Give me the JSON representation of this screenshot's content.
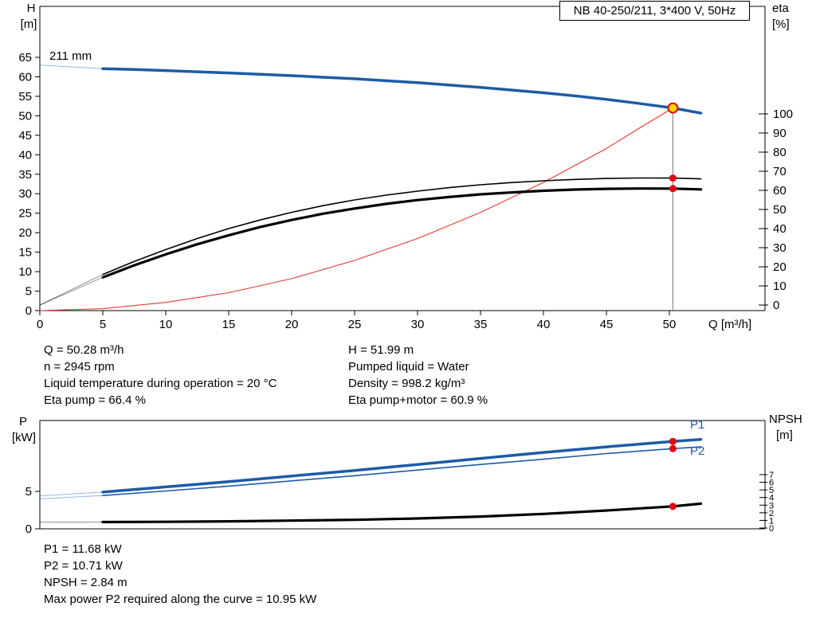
{
  "chart_data": [
    {
      "id": "qh-eta",
      "type": "line",
      "title": "NB 40-250/211, 3*400 V, 50Hz",
      "x_axis": {
        "label": "Q [m³/h]",
        "min": 0,
        "max": 57.6,
        "ticks": [
          0,
          5,
          10,
          15,
          20,
          25,
          30,
          35,
          40,
          45,
          50
        ]
      },
      "y_left": {
        "name": "H",
        "unit": "[m]",
        "min": 0,
        "max": 78,
        "ticks": [
          0,
          5,
          10,
          15,
          20,
          25,
          30,
          35,
          40,
          45,
          50,
          55,
          60,
          65
        ]
      },
      "y_right": {
        "name": "eta",
        "unit": "[%]",
        "min": 0,
        "max": 100,
        "ticks": [
          0,
          10,
          20,
          30,
          40,
          50,
          60,
          70,
          80,
          90,
          100
        ]
      },
      "duty_point": {
        "q": 50.28,
        "h": 51.99,
        "fill": "#ffd400",
        "ring": "#e30613"
      },
      "duty_color": "#e30613",
      "legend_position": "none",
      "grid": false,
      "series": [
        {
          "name": "system-curve",
          "axis": "left",
          "color": "#e5372e",
          "width": 1.1,
          "points": [
            [
              0,
              0
            ],
            [
              5,
              0.5
            ],
            [
              10,
              2.1
            ],
            [
              15,
              4.6
            ],
            [
              20,
              8.2
            ],
            [
              25,
              12.9
            ],
            [
              30,
              18.5
            ],
            [
              35,
              25.2
            ],
            [
              40,
              32.9
            ],
            [
              45,
              41.6
            ],
            [
              47.5,
              46.6
            ],
            [
              50.28,
              51.99
            ]
          ]
        },
        {
          "name": "eta-pump",
          "axis": "right",
          "color": "#000000",
          "width": 1.6,
          "duty_value": 66.4,
          "lead": [
            [
              0,
              0
            ],
            [
              5,
              16
            ]
          ],
          "points": [
            [
              5,
              16
            ],
            [
              7.5,
              22.8
            ],
            [
              10,
              29
            ],
            [
              12.5,
              34.8
            ],
            [
              15,
              40
            ],
            [
              17.5,
              44.5
            ],
            [
              20,
              48.5
            ],
            [
              22.5,
              52
            ],
            [
              25,
              55
            ],
            [
              27.5,
              57.5
            ],
            [
              30,
              59.6
            ],
            [
              32.5,
              61.4
            ],
            [
              35,
              62.9
            ],
            [
              37.5,
              64.1
            ],
            [
              40,
              65
            ],
            [
              42.5,
              65.7
            ],
            [
              45,
              66.2
            ],
            [
              47.5,
              66.45
            ],
            [
              50.28,
              66.4
            ],
            [
              52.5,
              66
            ]
          ]
        },
        {
          "name": "eta-pump-motor",
          "axis": "right",
          "color": "#000000",
          "width": 3.2,
          "duty_value": 60.9,
          "lead": [
            [
              0,
              0
            ],
            [
              5,
              14.5
            ]
          ],
          "points": [
            [
              5,
              14.5
            ],
            [
              7.5,
              20.8
            ],
            [
              10,
              26.5
            ],
            [
              12.5,
              31.8
            ],
            [
              15,
              36.5
            ],
            [
              17.5,
              40.8
            ],
            [
              20,
              44.5
            ],
            [
              22.5,
              47.8
            ],
            [
              25,
              50.5
            ],
            [
              27.5,
              52.9
            ],
            [
              30,
              54.9
            ],
            [
              32.5,
              56.5
            ],
            [
              35,
              57.9
            ],
            [
              37.5,
              58.9
            ],
            [
              40,
              59.8
            ],
            [
              42.5,
              60.4
            ],
            [
              45,
              60.8
            ],
            [
              47.5,
              60.95
            ],
            [
              50.28,
              60.9
            ],
            [
              52.5,
              60.5
            ]
          ]
        },
        {
          "name": "head-211mm",
          "axis": "left",
          "color": "#1d5ba6",
          "width": 3.5,
          "label": "211 mm",
          "lead": [
            [
              0,
              63
            ],
            [
              5,
              62.1
            ]
          ],
          "points": [
            [
              5,
              62.1
            ],
            [
              7.5,
              61.9
            ],
            [
              10,
              61.6
            ],
            [
              12.5,
              61.3
            ],
            [
              15,
              61
            ],
            [
              17.5,
              60.65
            ],
            [
              20,
              60.3
            ],
            [
              22.5,
              59.9
            ],
            [
              25,
              59.5
            ],
            [
              27.5,
              59
            ],
            [
              30,
              58.5
            ],
            [
              32.5,
              57.9
            ],
            [
              35,
              57.3
            ],
            [
              37.5,
              56.6
            ],
            [
              40,
              55.9
            ],
            [
              42.5,
              55.1
            ],
            [
              45,
              54.2
            ],
            [
              47.5,
              53.2
            ],
            [
              50.28,
              51.99
            ],
            [
              52.5,
              50.7
            ]
          ]
        }
      ]
    },
    {
      "id": "power-npsh",
      "type": "line",
      "x_axis": {
        "min": 0,
        "max": 57.6,
        "ticks": []
      },
      "y_left": {
        "name": "P",
        "unit": "[kW]",
        "min": 0,
        "max": 14.5,
        "ticks": [
          0,
          5
        ]
      },
      "y_right": {
        "name": "NPSH",
        "unit": "[m]",
        "min": 0,
        "max": 14,
        "ticks": [
          0,
          1,
          2,
          3,
          4,
          5,
          6,
          7
        ]
      },
      "duty_point": {
        "q": 50.28
      },
      "duty_color": "#e30613",
      "legend_position": "inline-right",
      "grid": false,
      "series": [
        {
          "name": "p1",
          "axis": "left",
          "color": "#1d5ba6",
          "width": 3.5,
          "label": "P1",
          "duty_value": 11.68,
          "lead": [
            [
              0,
              4.4
            ],
            [
              5,
              4.9
            ]
          ],
          "points": [
            [
              5,
              4.9
            ],
            [
              10,
              5.6
            ],
            [
              15,
              6.3
            ],
            [
              20,
              7.05
            ],
            [
              25,
              7.8
            ],
            [
              30,
              8.6
            ],
            [
              35,
              9.4
            ],
            [
              40,
              10.2
            ],
            [
              45,
              10.95
            ],
            [
              50.28,
              11.68
            ],
            [
              52.5,
              11.95
            ]
          ]
        },
        {
          "name": "p2",
          "axis": "left",
          "color": "#1d5ba6",
          "width": 1.6,
          "label": "P2",
          "duty_value": 10.71,
          "lead": [
            [
              0,
              4
            ],
            [
              5,
              4.45
            ]
          ],
          "points": [
            [
              5,
              4.45
            ],
            [
              10,
              5.05
            ],
            [
              15,
              5.7
            ],
            [
              20,
              6.4
            ],
            [
              25,
              7.1
            ],
            [
              30,
              7.85
            ],
            [
              35,
              8.6
            ],
            [
              40,
              9.3
            ],
            [
              45,
              10.05
            ],
            [
              50.28,
              10.71
            ],
            [
              52.5,
              10.95
            ]
          ]
        },
        {
          "name": "npsh",
          "axis": "right",
          "color": "#000000",
          "width": 3.2,
          "duty_value": 2.84,
          "lead": [
            [
              0,
              0.75
            ],
            [
              5,
              0.78
            ]
          ],
          "points": [
            [
              5,
              0.78
            ],
            [
              10,
              0.82
            ],
            [
              15,
              0.88
            ],
            [
              20,
              0.97
            ],
            [
              25,
              1.08
            ],
            [
              30,
              1.25
            ],
            [
              35,
              1.5
            ],
            [
              40,
              1.85
            ],
            [
              45,
              2.3
            ],
            [
              50.28,
              2.84
            ],
            [
              52.5,
              3.2
            ]
          ]
        }
      ]
    }
  ],
  "details": {
    "left": [
      "Q = 50.28 m³/h",
      "n = 2945 rpm",
      "Liquid temperature during operation = 20 °C",
      "Eta pump = 66.4 %"
    ],
    "right": [
      "H = 51.99 m",
      "Pumped liquid = Water",
      "Density = 998.2 kg/m³",
      "Eta pump+motor = 60.9 %"
    ]
  },
  "footer": [
    "P1 = 11.68 kW",
    "P2 = 10.71 kW",
    "NPSH = 2.84 m",
    "Max power P2 required along the curve = 10.95 kW"
  ]
}
